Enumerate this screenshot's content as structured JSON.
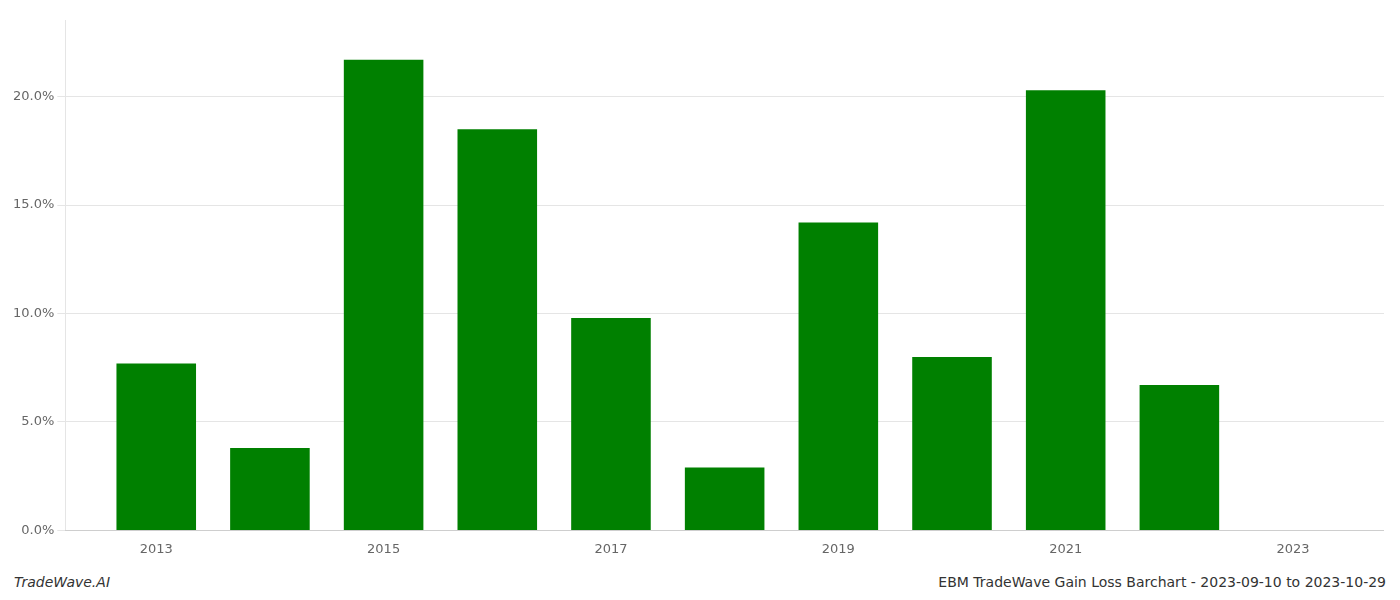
{
  "chart_data": {
    "type": "bar",
    "x": [
      2013,
      2014,
      2015,
      2016,
      2017,
      2018,
      2019,
      2020,
      2021,
      2022
    ],
    "values": [
      0.077,
      0.038,
      0.217,
      0.185,
      0.098,
      0.029,
      0.142,
      0.08,
      0.203,
      0.067
    ],
    "color": "#008000",
    "xlim": [
      2012.2,
      2023.8
    ],
    "xticks": [
      2013,
      2015,
      2017,
      2019,
      2021,
      2023
    ],
    "ylim": [
      0,
      0.235
    ],
    "yticks": [
      {
        "value": 0.0,
        "label": "0.0%"
      },
      {
        "value": 0.05,
        "label": "5.0%"
      },
      {
        "value": 0.1,
        "label": "10.0%"
      },
      {
        "value": 0.15,
        "label": "15.0%"
      },
      {
        "value": 0.2,
        "label": "20.0%"
      }
    ],
    "grid": true,
    "annotations": [
      "TradeWave.AI",
      "EBM TradeWave Gain Loss Barchart - 2023-09-10 to 2023-10-29"
    ]
  }
}
